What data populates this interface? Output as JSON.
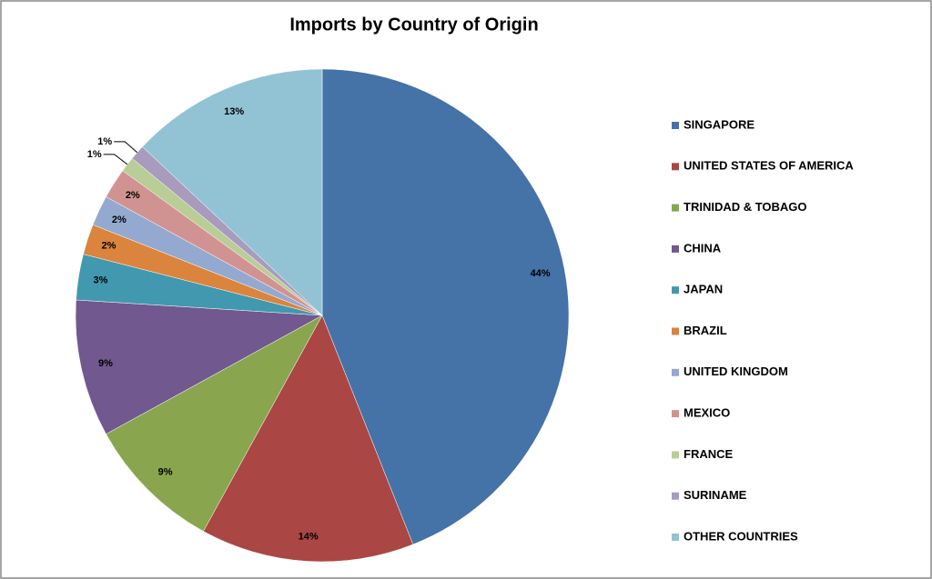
{
  "chart_data": {
    "type": "pie",
    "title": "Imports by Country of Origin",
    "categories": [
      "SINGAPORE",
      "UNITED STATES OF AMERICA",
      "TRINIDAD & TOBAGO",
      "CHINA",
      "JAPAN",
      "BRAZIL",
      "UNITED KINGDOM",
      "MEXICO",
      "FRANCE",
      "SURINAME",
      "OTHER COUNTRIES"
    ],
    "values": [
      44,
      14,
      9,
      9,
      3,
      2,
      2,
      2,
      1,
      1,
      13
    ],
    "value_labels": [
      "44%",
      "14%",
      "9%",
      "9%",
      "3%",
      "2%",
      "2%",
      "2%",
      "1%",
      "1%",
      "13%"
    ],
    "colors": [
      "#4572a7",
      "#aa4643",
      "#89a54e",
      "#71588f",
      "#4198af",
      "#db843d",
      "#93a9cf",
      "#d19392",
      "#b9cd96",
      "#a99bbd",
      "#92c3d5"
    ],
    "legend": "right"
  }
}
